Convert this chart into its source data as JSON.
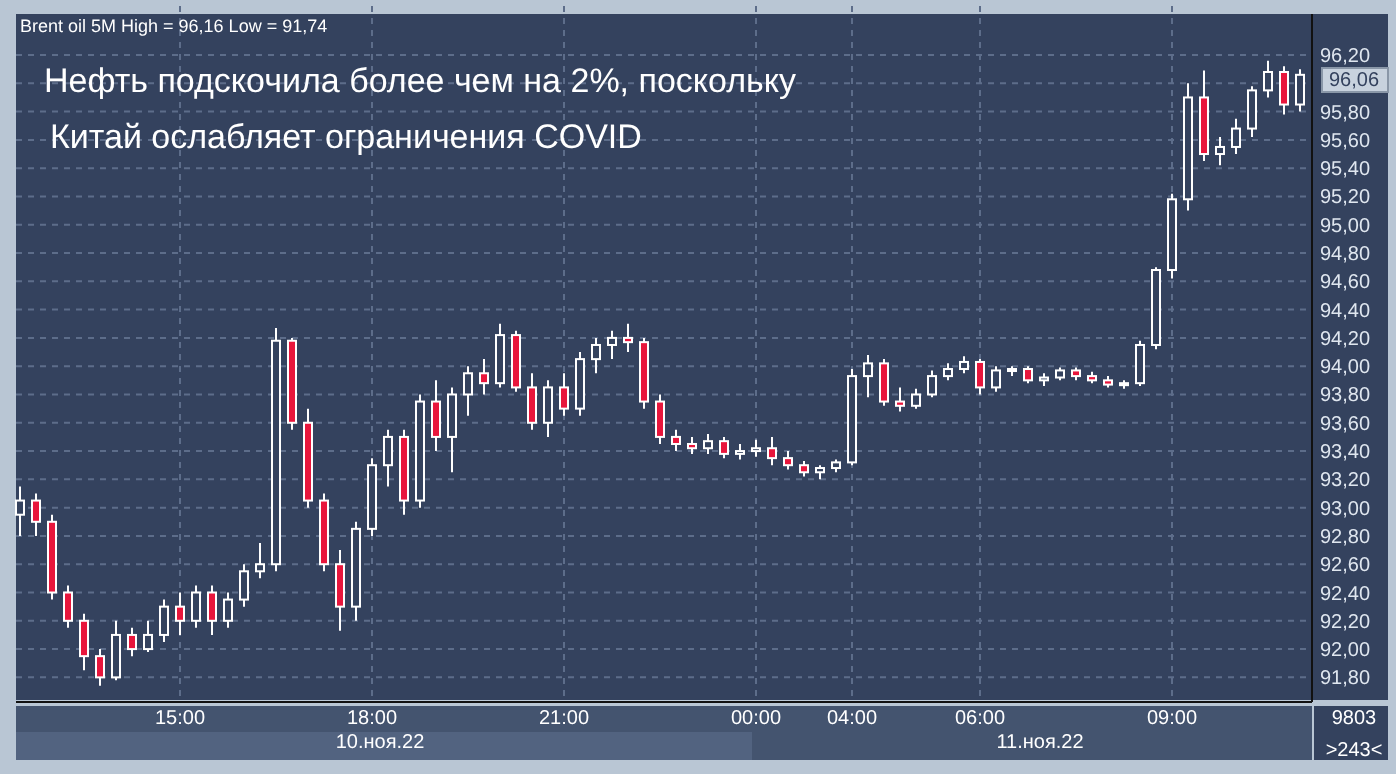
{
  "chart_data": {
    "type": "candlestick",
    "title": "Нефть подскочила более чем на 2%, поскольку\nКитай ослабляет ограничения COVID",
    "subtitle": "Brent oil 5M High = 96,16 Low = 91,74",
    "categories": [
      null,
      null,
      null,
      null,
      null,
      null,
      null,
      null,
      null,
      null,
      "15:00",
      null,
      null,
      null,
      null,
      null,
      null,
      null,
      null,
      null,
      null,
      null,
      "18:00",
      null,
      null,
      null,
      null,
      null,
      null,
      null,
      null,
      null,
      null,
      null,
      "21:00",
      null,
      null,
      null,
      null,
      null,
      null,
      null,
      null,
      null,
      null,
      null,
      "00:00",
      null,
      null,
      null,
      null,
      null,
      "04:00",
      null,
      null,
      null,
      null,
      null,
      null,
      null,
      "06:00",
      null,
      null,
      null,
      null,
      null,
      null,
      null,
      null,
      null,
      null,
      null,
      "09:00",
      null,
      null,
      null,
      null,
      null,
      null,
      null,
      null
    ],
    "color": "#ffffff",
    "grid": true,
    "ylim": [
      91.64,
      96.49
    ],
    "yticks": [
      {
        "value": 91.8,
        "label": "91,80"
      },
      {
        "value": 92.0,
        "label": "92,00"
      },
      {
        "value": 92.2,
        "label": "92,20"
      },
      {
        "value": 92.4,
        "label": "92,40"
      },
      {
        "value": 92.6,
        "label": "92,60"
      },
      {
        "value": 92.8,
        "label": "92,80"
      },
      {
        "value": 93.0,
        "label": "93,00"
      },
      {
        "value": 93.2,
        "label": "93,20"
      },
      {
        "value": 93.4,
        "label": "93,40"
      },
      {
        "value": 93.6,
        "label": "93,60"
      },
      {
        "value": 93.8,
        "label": "93,80"
      },
      {
        "value": 94.0,
        "label": "94,00"
      },
      {
        "value": 94.2,
        "label": "94,20"
      },
      {
        "value": 94.4,
        "label": "94,40"
      },
      {
        "value": 94.6,
        "label": "94,60"
      },
      {
        "value": 94.8,
        "label": "94,80"
      },
      {
        "value": 95.0,
        "label": "95,00"
      },
      {
        "value": 95.2,
        "label": "95,20"
      },
      {
        "value": 95.4,
        "label": "95,40"
      },
      {
        "value": 95.6,
        "label": "95,60"
      },
      {
        "value": 95.8,
        "label": "95,80"
      },
      {
        "value": 96.0,
        "label": null
      },
      {
        "value": 96.2,
        "label": "96,20"
      }
    ],
    "annotations": [
      "96,06",
      "10.ноя.22",
      "11.ноя.22",
      "9803",
      ">243<"
    ],
    "ohlc": [
      [
        92.95,
        93.15,
        92.8,
        93.05
      ],
      [
        93.05,
        93.1,
        92.8,
        92.9
      ],
      [
        92.9,
        92.95,
        92.35,
        92.4
      ],
      [
        92.4,
        92.45,
        92.15,
        92.2
      ],
      [
        92.2,
        92.25,
        91.85,
        91.95
      ],
      [
        91.95,
        92.0,
        91.74,
        91.8
      ],
      [
        91.8,
        92.2,
        91.78,
        92.1
      ],
      [
        92.1,
        92.15,
        91.95,
        92.0
      ],
      [
        92.0,
        92.2,
        91.98,
        92.1
      ],
      [
        92.1,
        92.35,
        92.05,
        92.3
      ],
      [
        92.3,
        92.4,
        92.1,
        92.2
      ],
      [
        92.2,
        92.45,
        92.15,
        92.4
      ],
      [
        92.4,
        92.45,
        92.1,
        92.2
      ],
      [
        92.2,
        92.4,
        92.15,
        92.35
      ],
      [
        92.35,
        92.6,
        92.3,
        92.55
      ],
      [
        92.55,
        92.75,
        92.5,
        92.6
      ],
      [
        92.6,
        94.27,
        92.55,
        94.18
      ],
      [
        94.18,
        94.2,
        93.55,
        93.6
      ],
      [
        93.6,
        93.7,
        93.0,
        93.05
      ],
      [
        93.05,
        93.1,
        92.55,
        92.6
      ],
      [
        92.6,
        92.7,
        92.13,
        92.3
      ],
      [
        92.3,
        92.9,
        92.2,
        92.85
      ],
      [
        92.85,
        93.35,
        92.8,
        93.3
      ],
      [
        93.3,
        93.55,
        93.15,
        93.5
      ],
      [
        93.5,
        93.55,
        92.95,
        93.05
      ],
      [
        93.05,
        93.8,
        93.0,
        93.75
      ],
      [
        93.75,
        93.9,
        93.4,
        93.5
      ],
      [
        93.5,
        93.85,
        93.25,
        93.8
      ],
      [
        93.8,
        94.0,
        93.65,
        93.95
      ],
      [
        93.95,
        94.05,
        93.8,
        93.88
      ],
      [
        93.88,
        94.3,
        93.85,
        94.22
      ],
      [
        94.22,
        94.25,
        93.82,
        93.85
      ],
      [
        93.85,
        93.95,
        93.55,
        93.6
      ],
      [
        93.6,
        93.9,
        93.5,
        93.85
      ],
      [
        93.85,
        93.95,
        93.65,
        93.7
      ],
      [
        93.7,
        94.1,
        93.65,
        94.05
      ],
      [
        94.05,
        94.2,
        93.95,
        94.15
      ],
      [
        94.15,
        94.25,
        94.05,
        94.2
      ],
      [
        94.2,
        94.3,
        94.1,
        94.17
      ],
      [
        94.17,
        94.2,
        93.7,
        93.75
      ],
      [
        93.75,
        93.8,
        93.45,
        93.5
      ],
      [
        93.5,
        93.55,
        93.4,
        93.45
      ],
      [
        93.45,
        93.5,
        93.38,
        93.42
      ],
      [
        93.42,
        93.52,
        93.38,
        93.47
      ],
      [
        93.47,
        93.5,
        93.35,
        93.38
      ],
      [
        93.38,
        93.45,
        93.34,
        93.4
      ],
      [
        93.4,
        93.48,
        93.36,
        93.42
      ],
      [
        93.42,
        93.5,
        93.3,
        93.35
      ],
      [
        93.35,
        93.4,
        93.27,
        93.3
      ],
      [
        93.3,
        93.33,
        93.22,
        93.25
      ],
      [
        93.25,
        93.3,
        93.2,
        93.28
      ],
      [
        93.28,
        93.34,
        93.25,
        93.32
      ],
      [
        93.32,
        93.98,
        93.3,
        93.93
      ],
      [
        93.93,
        94.08,
        93.78,
        94.02
      ],
      [
        94.02,
        94.05,
        93.72,
        93.75
      ],
      [
        93.75,
        93.85,
        93.68,
        93.72
      ],
      [
        93.72,
        93.84,
        93.7,
        93.8
      ],
      [
        93.8,
        93.97,
        93.78,
        93.93
      ],
      [
        93.93,
        94.02,
        93.9,
        93.98
      ],
      [
        93.98,
        94.07,
        93.95,
        94.03
      ],
      [
        94.03,
        94.05,
        93.8,
        93.85
      ],
      [
        93.85,
        94.0,
        93.82,
        93.97
      ],
      [
        93.97,
        94.0,
        93.93,
        93.98
      ],
      [
        93.98,
        94.0,
        93.88,
        93.9
      ],
      [
        93.9,
        93.95,
        93.86,
        93.92
      ],
      [
        93.92,
        93.99,
        93.9,
        93.97
      ],
      [
        93.97,
        93.99,
        93.9,
        93.93
      ],
      [
        93.93,
        93.96,
        93.88,
        93.9
      ],
      [
        93.9,
        93.93,
        93.85,
        93.87
      ],
      [
        93.87,
        93.9,
        93.84,
        93.88
      ],
      [
        93.88,
        94.18,
        93.86,
        94.15
      ],
      [
        94.15,
        94.7,
        94.12,
        94.68
      ],
      [
        94.68,
        95.22,
        94.62,
        95.18
      ],
      [
        95.18,
        96.0,
        95.1,
        95.9
      ],
      [
        95.9,
        96.09,
        95.45,
        95.5
      ],
      [
        95.5,
        95.62,
        95.42,
        95.55
      ],
      [
        95.55,
        95.75,
        95.5,
        95.68
      ],
      [
        95.68,
        95.98,
        95.62,
        95.95
      ],
      [
        95.95,
        96.16,
        95.9,
        96.08
      ],
      [
        96.08,
        96.12,
        95.78,
        95.85
      ],
      [
        95.85,
        96.1,
        95.8,
        96.06
      ]
    ]
  }
}
